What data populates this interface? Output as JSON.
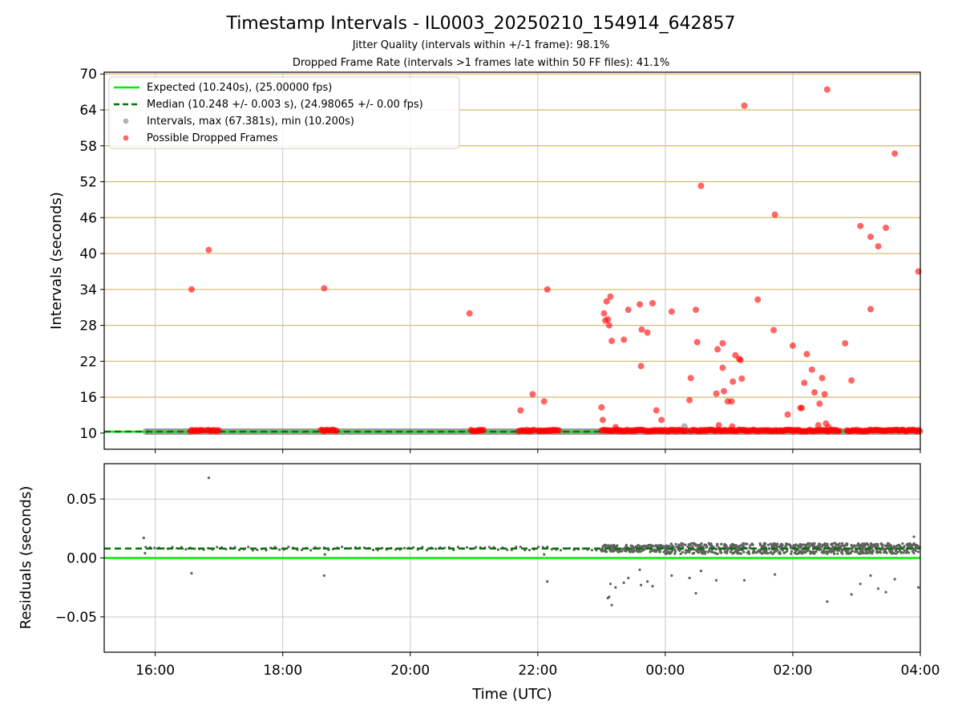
{
  "chart_data": [
    {
      "type": "scatter",
      "title": "Timestamp Intervals - IL0003_20250210_154914_642857",
      "subtitle_1": "Jitter Quality (intervals within +/-1 frame): 98.1%",
      "subtitle_2": "Dropped Frame Rate (intervals >1 frames late within 50 FF files): 41.1%",
      "xlabel": "",
      "ylabel": "Intervals (seconds)",
      "xlim_hours": [
        15.2,
        28.0
      ],
      "ylim": [
        7.3,
        70.3
      ],
      "yticks": [
        10,
        16,
        22,
        28,
        34,
        40,
        46,
        52,
        58,
        64,
        70
      ],
      "ytick_labels": [
        "10",
        "16",
        "22",
        "28",
        "34",
        "40",
        "46",
        "52",
        "58",
        "64",
        "70"
      ],
      "legend_position": "upper-left",
      "legend": [
        "Expected (10.240s), (25.00000 fps)",
        "Median (10.248 +/- 0.003 s), (24.98065 +/- 0.00 fps)",
        "Intervals, max (67.381s), min (10.200s)",
        "Possible Dropped Frames"
      ],
      "expected_interval": 10.24,
      "median_interval": 10.248,
      "colors": {
        "expected": "#00ee00",
        "median": "#007700",
        "intervals": "#7f7f7f",
        "dropped": "#ff0000",
        "grid_y": "#d4b96a",
        "grid_x": "#c8c8c8"
      },
      "dense_dropped_ranges_hours": [
        [
          16.55,
          16.75
        ],
        [
          16.8,
          17.0
        ],
        [
          18.6,
          18.85
        ],
        [
          20.95,
          21.15
        ],
        [
          21.7,
          21.95
        ],
        [
          22.0,
          22.35
        ],
        [
          23.0,
          24.35
        ],
        [
          24.4,
          26.75
        ],
        [
          26.85,
          28.0
        ]
      ],
      "dropped_points": [
        [
          16.57,
          34.0
        ],
        [
          16.84,
          40.6
        ],
        [
          18.65,
          34.2
        ],
        [
          20.93,
          30.0
        ],
        [
          21.73,
          13.8
        ],
        [
          21.92,
          16.5
        ],
        [
          22.1,
          15.3
        ],
        [
          22.15,
          34.0
        ],
        [
          23.0,
          14.3
        ],
        [
          23.02,
          12.2
        ],
        [
          23.04,
          30.0
        ],
        [
          23.06,
          28.8
        ],
        [
          23.08,
          32.0
        ],
        [
          23.1,
          29.0
        ],
        [
          23.12,
          28.0
        ],
        [
          23.14,
          32.8
        ],
        [
          23.16,
          25.4
        ],
        [
          23.22,
          11.0
        ],
        [
          23.35,
          25.6
        ],
        [
          23.42,
          30.6
        ],
        [
          23.6,
          31.5
        ],
        [
          23.62,
          21.2
        ],
        [
          23.63,
          27.3
        ],
        [
          23.72,
          26.8
        ],
        [
          23.8,
          31.7
        ],
        [
          23.86,
          13.8
        ],
        [
          23.94,
          12.2
        ],
        [
          24.1,
          30.3
        ],
        [
          24.38,
          15.5
        ],
        [
          24.4,
          19.2
        ],
        [
          24.48,
          30.6
        ],
        [
          24.5,
          25.2
        ],
        [
          24.56,
          51.3
        ],
        [
          24.8,
          16.6
        ],
        [
          24.82,
          24.0
        ],
        [
          24.84,
          11.3
        ],
        [
          24.9,
          25.0
        ],
        [
          24.9,
          20.9
        ],
        [
          24.92,
          17.0
        ],
        [
          24.98,
          15.3
        ],
        [
          25.04,
          15.3
        ],
        [
          25.05,
          11.1
        ],
        [
          25.06,
          18.6
        ],
        [
          25.1,
          23.0
        ],
        [
          25.16,
          22.4
        ],
        [
          25.18,
          22.2
        ],
        [
          25.2,
          19.1
        ],
        [
          25.24,
          64.7
        ],
        [
          25.45,
          32.3
        ],
        [
          25.7,
          27.2
        ],
        [
          25.72,
          46.5
        ],
        [
          25.92,
          13.1
        ],
        [
          26.0,
          24.6
        ],
        [
          26.12,
          14.2
        ],
        [
          26.14,
          14.2
        ],
        [
          26.18,
          18.4
        ],
        [
          26.22,
          23.2
        ],
        [
          26.3,
          20.6
        ],
        [
          26.34,
          16.8
        ],
        [
          26.4,
          11.3
        ],
        [
          26.42,
          14.9
        ],
        [
          26.46,
          19.2
        ],
        [
          26.5,
          16.5
        ],
        [
          26.52,
          11.6
        ],
        [
          26.54,
          67.4
        ],
        [
          26.56,
          11.0
        ],
        [
          26.82,
          25.0
        ],
        [
          26.92,
          18.8
        ],
        [
          27.06,
          44.6
        ],
        [
          27.22,
          42.8
        ],
        [
          27.22,
          30.7
        ],
        [
          27.34,
          41.2
        ],
        [
          27.46,
          44.3
        ],
        [
          27.6,
          56.7
        ],
        [
          27.97,
          37.0
        ]
      ]
    },
    {
      "type": "scatter",
      "title": "",
      "xlabel": "Time (UTC)",
      "ylabel": "Residuals (seconds)",
      "xlim_hours": [
        15.2,
        28.0
      ],
      "ylim": [
        -0.08,
        0.08
      ],
      "yticks": [
        0.05,
        0.0,
        -0.05
      ],
      "ytick_labels": [
        "0.05",
        "0.00",
        "−0.05"
      ],
      "xticks_hours": [
        16,
        18,
        20,
        22,
        24,
        26,
        28
      ],
      "xtick_labels": [
        "16:00",
        "18:00",
        "20:00",
        "22:00",
        "00:00",
        "02:00",
        "04:00"
      ],
      "expected_residual": 0.0,
      "median_residual": 0.008,
      "colors": {
        "expected": "#00ee00",
        "median": "#007700",
        "points": "#606060",
        "grid": "#c8c8c8"
      },
      "outlier_points": [
        [
          15.82,
          0.017
        ],
        [
          15.84,
          0.004
        ],
        [
          16.57,
          -0.013
        ],
        [
          16.84,
          0.068
        ],
        [
          18.65,
          -0.015
        ],
        [
          18.66,
          0.003
        ],
        [
          22.15,
          -0.02
        ],
        [
          22.1,
          0.003
        ],
        [
          23.1,
          -0.034
        ],
        [
          23.12,
          -0.033
        ],
        [
          23.14,
          -0.022
        ],
        [
          23.16,
          -0.04
        ],
        [
          23.22,
          -0.025
        ],
        [
          23.35,
          -0.021
        ],
        [
          23.42,
          -0.017
        ],
        [
          23.6,
          -0.01
        ],
        [
          23.62,
          -0.023
        ],
        [
          23.72,
          -0.02
        ],
        [
          23.8,
          -0.024
        ],
        [
          24.1,
          -0.015
        ],
        [
          24.38,
          -0.017
        ],
        [
          24.48,
          -0.03
        ],
        [
          24.56,
          -0.011
        ],
        [
          24.8,
          -0.019
        ],
        [
          25.24,
          -0.019
        ],
        [
          25.72,
          -0.014
        ],
        [
          26.54,
          -0.037
        ],
        [
          26.92,
          -0.031
        ],
        [
          27.06,
          -0.022
        ],
        [
          27.22,
          -0.015
        ],
        [
          27.34,
          -0.026
        ],
        [
          27.46,
          -0.029
        ],
        [
          27.6,
          -0.018
        ],
        [
          27.97,
          -0.025
        ],
        [
          27.9,
          0.018
        ]
      ]
    }
  ]
}
